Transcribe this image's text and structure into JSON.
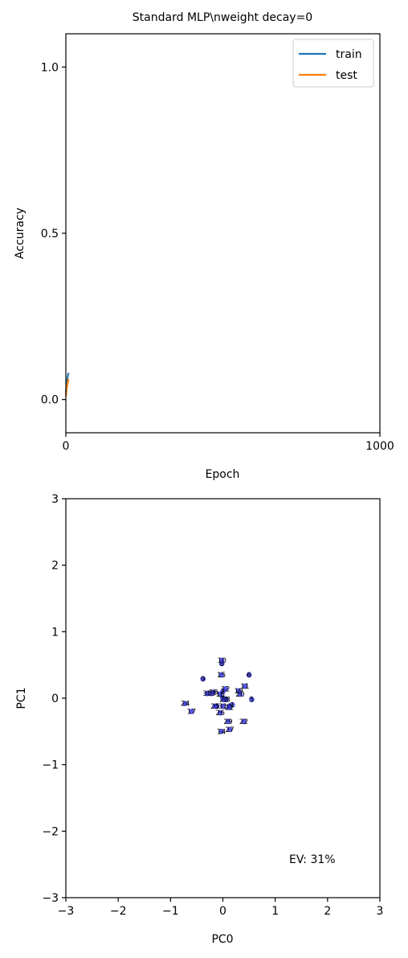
{
  "chart_data": [
    {
      "type": "line",
      "title": "Standard MLP\\nweight decay=0",
      "xlabel": "Epoch",
      "ylabel": "Accuracy",
      "xlim": [
        0,
        1000
      ],
      "ylim": [
        -0.1,
        1.1
      ],
      "xticks": [
        0,
        1000
      ],
      "yticks": [
        0.0,
        0.5,
        1.0
      ],
      "xtick_labels": [
        "0",
        "1000"
      ],
      "ytick_labels": [
        "0.0",
        "0.5",
        "1.0"
      ],
      "legend": "top-right",
      "grid": false,
      "series": [
        {
          "name": "train",
          "color": "#1f77b4",
          "x": [
            0,
            1,
            2,
            3,
            4,
            5,
            6,
            7,
            8,
            9
          ],
          "y": [
            0.02,
            0.03,
            0.04,
            0.05,
            0.06,
            0.065,
            0.07,
            0.075,
            0.078,
            0.08
          ]
        },
        {
          "name": "test",
          "color": "#ff7f0e",
          "x": [
            0,
            1,
            2,
            3,
            4,
            5,
            6,
            7,
            8,
            9
          ],
          "y": [
            0.01,
            0.02,
            0.03,
            0.035,
            0.04,
            0.045,
            0.05,
            0.055,
            0.06,
            0.062
          ]
        }
      ]
    },
    {
      "type": "scatter",
      "xlabel": "PC0",
      "ylabel": "PC1",
      "xlim": [
        -3,
        3
      ],
      "ylim": [
        -3,
        3
      ],
      "xticks": [
        -3,
        -2,
        -1,
        0,
        1,
        2,
        3
      ],
      "yticks": [
        -3,
        -2,
        -1,
        0,
        1,
        2,
        3
      ],
      "xtick_labels": [
        "−3",
        "−2",
        "−1",
        "0",
        "1",
        "2",
        "3"
      ],
      "ytick_labels": [
        "−3",
        "−2",
        "−1",
        "0",
        "1",
        "2",
        "3"
      ],
      "annotation": "EV: 31%",
      "point_color": "#3a3ae0",
      "grid": false,
      "points": [
        {
          "label": "0",
          "x": -0.12,
          "y": -0.12
        },
        {
          "label": "1",
          "x": 0.18,
          "y": -0.1
        },
        {
          "label": "2",
          "x": 0.0,
          "y": 0.0
        },
        {
          "label": "3",
          "x": 0.05,
          "y": -0.02
        },
        {
          "label": "4",
          "x": 0.12,
          "y": -0.12
        },
        {
          "label": "5",
          "x": 0.55,
          "y": -0.02
        },
        {
          "label": "6",
          "x": 0.5,
          "y": 0.35
        },
        {
          "label": "7",
          "x": 0.0,
          "y": 0.1
        },
        {
          "label": "8",
          "x": -0.02,
          "y": 0.52
        },
        {
          "label": "9",
          "x": -0.38,
          "y": 0.29
        },
        {
          "label": "10",
          "x": -0.02,
          "y": 0.57
        },
        {
          "label": "11",
          "x": 0.42,
          "y": 0.18
        },
        {
          "label": "12",
          "x": 0.05,
          "y": 0.14
        },
        {
          "label": "13",
          "x": 0.06,
          "y": -0.02
        },
        {
          "label": "14",
          "x": -0.03,
          "y": -0.5
        },
        {
          "label": "15",
          "x": -0.03,
          "y": 0.35
        },
        {
          "label": "16",
          "x": -0.05,
          "y": 0.06
        },
        {
          "label": "17",
          "x": -0.6,
          "y": -0.2
        },
        {
          "label": "18",
          "x": -0.18,
          "y": 0.09
        },
        {
          "label": "19",
          "x": 0.3,
          "y": 0.11
        },
        {
          "label": "20",
          "x": 0.33,
          "y": 0.06
        },
        {
          "label": "21",
          "x": 0.12,
          "y": -0.14
        },
        {
          "label": "22",
          "x": 0.4,
          "y": -0.35
        },
        {
          "label": "23",
          "x": -0.23,
          "y": 0.07
        },
        {
          "label": "24",
          "x": -0.72,
          "y": -0.08
        },
        {
          "label": "25",
          "x": -0.15,
          "y": -0.12
        },
        {
          "label": "26",
          "x": -0.05,
          "y": -0.22
        },
        {
          "label": "27",
          "x": 0.13,
          "y": -0.47
        },
        {
          "label": "28",
          "x": 0.02,
          "y": -0.02
        },
        {
          "label": "29",
          "x": 0.1,
          "y": -0.35
        },
        {
          "label": "30",
          "x": -0.3,
          "y": 0.07
        },
        {
          "label": "31",
          "x": 0.0,
          "y": -0.12
        }
      ]
    }
  ]
}
